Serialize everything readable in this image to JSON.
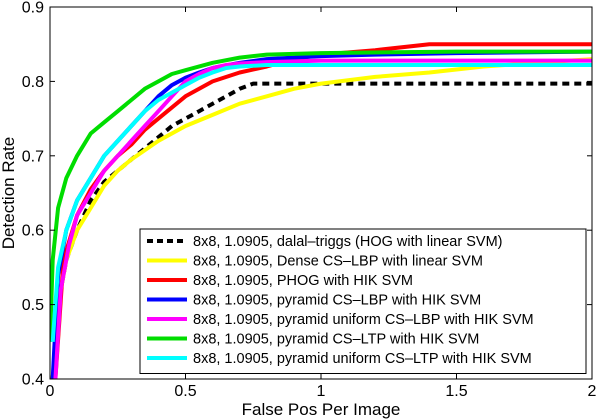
{
  "chart_data": {
    "type": "line",
    "title": "",
    "xlabel": "False Pos Per Image",
    "ylabel": "Detection Rate",
    "xlim": [
      0,
      2
    ],
    "ylim": [
      0.4,
      0.9
    ],
    "xticks": [
      0,
      0.5,
      1,
      1.5,
      2
    ],
    "yticks": [
      0.4,
      0.5,
      0.6,
      0.7,
      0.8,
      0.9
    ],
    "xtick_labels": [
      "0",
      "0.5",
      "1",
      "1.5",
      "2"
    ],
    "ytick_labels": [
      "0.4",
      "0.5",
      "0.6",
      "0.7",
      "0.8",
      "0.9"
    ],
    "grid": false,
    "legend_position": "bottom-right",
    "series": [
      {
        "name": "8x8, 1.0905, dalal–triggs (HOG with linear SVM)",
        "color": "#000000",
        "dash": true,
        "x": [
          0.01,
          0.03,
          0.06,
          0.1,
          0.15,
          0.2,
          0.25,
          0.3,
          0.35,
          0.4,
          0.45,
          0.5,
          0.55,
          0.6,
          0.65,
          0.7,
          0.75,
          0.8,
          1.0,
          1.5,
          2.0
        ],
        "y": [
          0.4,
          0.5,
          0.56,
          0.6,
          0.64,
          0.665,
          0.68,
          0.695,
          0.71,
          0.725,
          0.74,
          0.75,
          0.76,
          0.77,
          0.78,
          0.79,
          0.797,
          0.797,
          0.797,
          0.797,
          0.797
        ]
      },
      {
        "name": "8x8, 1.0905, Dense CS–LBP with linear SVM",
        "color": "#ffff00",
        "dash": false,
        "x": [
          0.01,
          0.03,
          0.06,
          0.1,
          0.15,
          0.2,
          0.25,
          0.3,
          0.4,
          0.5,
          0.6,
          0.7,
          0.8,
          0.9,
          1.0,
          1.2,
          1.4,
          1.6,
          1.8,
          2.0
        ],
        "y": [
          0.4,
          0.5,
          0.56,
          0.6,
          0.63,
          0.66,
          0.68,
          0.695,
          0.72,
          0.74,
          0.755,
          0.77,
          0.78,
          0.79,
          0.797,
          0.806,
          0.812,
          0.82,
          0.825,
          0.83
        ]
      },
      {
        "name": "8x8, 1.0905, PHOG with HIK SVM",
        "color": "#ff0000",
        "dash": false,
        "x": [
          0.02,
          0.05,
          0.1,
          0.15,
          0.2,
          0.25,
          0.3,
          0.35,
          0.4,
          0.5,
          0.6,
          0.7,
          0.8,
          0.9,
          1.0,
          1.2,
          1.4,
          1.6,
          1.8,
          2.0
        ],
        "y": [
          0.4,
          0.56,
          0.62,
          0.655,
          0.68,
          0.7,
          0.715,
          0.735,
          0.75,
          0.78,
          0.8,
          0.812,
          0.82,
          0.83,
          0.836,
          0.842,
          0.85,
          0.85,
          0.85,
          0.85
        ]
      },
      {
        "name": "8x8, 1.0905, pyramid CS–LBP with HIK SVM",
        "color": "#0000ff",
        "dash": false,
        "x": [
          0.01,
          0.03,
          0.06,
          0.1,
          0.15,
          0.2,
          0.25,
          0.3,
          0.35,
          0.4,
          0.45,
          0.5,
          0.55,
          0.6,
          0.7,
          0.8,
          1.0,
          1.2,
          1.5,
          2.0
        ],
        "y": [
          0.4,
          0.54,
          0.6,
          0.64,
          0.67,
          0.7,
          0.72,
          0.74,
          0.76,
          0.78,
          0.795,
          0.805,
          0.812,
          0.818,
          0.825,
          0.83,
          0.834,
          0.836,
          0.838,
          0.84
        ]
      },
      {
        "name": "8x8, 1.0905, pyramid uniform CS–LBP with HIK SVM",
        "color": "#ff00ff",
        "dash": false,
        "x": [
          0.02,
          0.04,
          0.07,
          0.1,
          0.15,
          0.2,
          0.25,
          0.3,
          0.35,
          0.4,
          0.45,
          0.5,
          0.55,
          0.6,
          0.65,
          0.7,
          0.8,
          1.0,
          1.5,
          2.0
        ],
        "y": [
          0.4,
          0.52,
          0.58,
          0.62,
          0.65,
          0.68,
          0.7,
          0.72,
          0.74,
          0.76,
          0.78,
          0.8,
          0.81,
          0.818,
          0.822,
          0.824,
          0.826,
          0.828,
          0.828,
          0.828
        ]
      },
      {
        "name": "8x8, 1.0905, pyramid CS–LTP with HIK SVM",
        "color": "#00dd00",
        "dash": false,
        "x": [
          0.0,
          0.01,
          0.03,
          0.06,
          0.1,
          0.15,
          0.2,
          0.25,
          0.3,
          0.35,
          0.4,
          0.45,
          0.5,
          0.6,
          0.7,
          0.8,
          1.0,
          1.5,
          2.0
        ],
        "y": [
          0.45,
          0.56,
          0.63,
          0.67,
          0.7,
          0.73,
          0.745,
          0.76,
          0.775,
          0.79,
          0.8,
          0.81,
          0.815,
          0.825,
          0.832,
          0.836,
          0.838,
          0.84,
          0.84
        ]
      },
      {
        "name": "8x8, 1.0905, pyramid uniform CS–LTP with HIK SVM",
        "color": "#00ffff",
        "dash": false,
        "x": [
          0.01,
          0.03,
          0.06,
          0.1,
          0.15,
          0.2,
          0.25,
          0.3,
          0.35,
          0.4,
          0.45,
          0.5,
          0.55,
          0.6,
          0.65,
          0.7,
          0.8,
          1.0,
          1.5,
          2.0
        ],
        "y": [
          0.45,
          0.55,
          0.6,
          0.64,
          0.67,
          0.7,
          0.72,
          0.74,
          0.76,
          0.775,
          0.785,
          0.795,
          0.805,
          0.812,
          0.818,
          0.82,
          0.822,
          0.822,
          0.822,
          0.822
        ]
      }
    ]
  }
}
